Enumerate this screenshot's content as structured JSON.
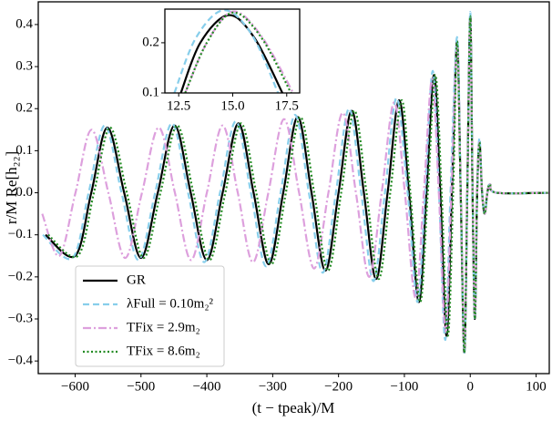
{
  "chart_data": [
    {
      "type": "line",
      "xlabel": "(t − tpeak)/M",
      "ylabel": "r/M Re[h₂₂]",
      "xlim": [
        -656,
        120
      ],
      "ylim": [
        -0.43,
        0.454
      ],
      "xticks": [
        {
          "value": -600,
          "label": "−600"
        },
        {
          "value": -500,
          "label": "−500"
        },
        {
          "value": -400,
          "label": "−400"
        },
        {
          "value": -300,
          "label": "−300"
        },
        {
          "value": -200,
          "label": "−200"
        },
        {
          "value": -100,
          "label": "−100"
        },
        0,
        100
      ],
      "yticks": [
        {
          "value": -0.4,
          "label": "−0.4"
        },
        {
          "value": -0.3,
          "label": "−0.3"
        },
        {
          "value": -0.2,
          "label": "−0.2"
        },
        {
          "value": -0.1,
          "label": "−0.1"
        },
        {
          "value": 0,
          "label": "0.0"
        },
        0.1,
        0.2,
        0.3,
        0.4
      ],
      "legend": "lower left",
      "series": [
        {
          "name": "GR",
          "color": "#000000",
          "dash": "solid",
          "x": [
            -645,
            -600,
            -575.5,
            -551,
            -525.5,
            -500,
            -474.5,
            -449,
            -424.5,
            -400,
            -376,
            -352,
            -329,
            -306,
            -284,
            -262,
            -241,
            -220,
            -200,
            -180,
            -161.5,
            -143,
            -125.5,
            -108,
            -93,
            -78,
            -66.5,
            -55,
            -45.5,
            -36,
            -28,
            -20,
            -14.5,
            -9,
            -4.5,
            0,
            3.5,
            7,
            10.5,
            14,
            18,
            22,
            26,
            30,
            40,
            120
          ],
          "values": [
            -0.1,
            -0.15,
            0,
            0.155,
            0,
            -0.155,
            0,
            0.16,
            0,
            -0.16,
            0,
            0.165,
            0,
            -0.17,
            0,
            0.18,
            0,
            -0.185,
            0,
            0.195,
            0,
            -0.205,
            0,
            0.22,
            0,
            -0.26,
            0,
            0.28,
            0,
            -0.34,
            0,
            0.36,
            0,
            -0.38,
            0,
            0.42,
            0,
            -0.3,
            0,
            0.12,
            0,
            -0.05,
            0,
            0.02,
            0,
            0
          ]
        },
        {
          "name": "λFull = 0.10m₂²",
          "color": "#87ceeb",
          "dash": "dashed",
          "x": [
            -649,
            -604,
            -579.5,
            -555,
            -529.5,
            -504,
            -478.5,
            -453,
            -428.5,
            -404,
            -380,
            -356,
            -333,
            -310,
            -288,
            -266,
            -245,
            -224,
            -204,
            -184,
            -165.5,
            -147,
            -129.5,
            -112,
            -95,
            -80,
            -68.5,
            -57,
            -47.5,
            -38,
            -30,
            -20,
            -14.5,
            -9,
            -4.5,
            0,
            3.5,
            7,
            10.5,
            14,
            18,
            22,
            26,
            30,
            40,
            120
          ],
          "values": [
            -0.1,
            -0.155,
            0,
            0.16,
            0,
            -0.16,
            0,
            0.165,
            0,
            -0.165,
            0,
            0.17,
            0,
            -0.175,
            0,
            0.185,
            0,
            -0.19,
            0,
            0.2,
            0,
            -0.21,
            0,
            0.225,
            0,
            -0.26,
            0,
            0.29,
            0,
            -0.35,
            0,
            0.37,
            0,
            -0.38,
            0,
            0.43,
            0,
            -0.3,
            0,
            0.13,
            0,
            -0.05,
            0,
            0.02,
            0,
            0
          ]
        },
        {
          "name": "TFix = 2.9m₂",
          "color": "#dda0dd",
          "dash": "dashdot",
          "x": [
            -650,
            -624,
            -599.5,
            -575,
            -549.5,
            -524,
            -498.5,
            -473,
            -448.5,
            -424,
            -400,
            -376,
            -353,
            -330,
            -306.6,
            -282.7,
            -259.9,
            -237.1,
            -215.4,
            -193.7,
            -173.6,
            -153.5,
            -134.5,
            -115.5,
            -99.3,
            -83,
            -70.5,
            -58,
            -47.7,
            -37.4,
            -28.7,
            -20,
            -14.5,
            -9,
            -4.5,
            0,
            3.5,
            7,
            10.5,
            14,
            18,
            22,
            26,
            30,
            40,
            120
          ],
          "values": [
            -0.05,
            -0.15,
            0,
            0.15,
            0,
            -0.155,
            0,
            0.155,
            0,
            -0.16,
            0,
            0.16,
            0,
            -0.165,
            0,
            0.175,
            0,
            -0.18,
            0,
            0.19,
            0,
            -0.2,
            0,
            0.215,
            0,
            -0.25,
            0,
            0.27,
            0,
            -0.33,
            0,
            0.35,
            0,
            -0.37,
            0,
            0.41,
            0,
            -0.29,
            0,
            0.12,
            0,
            -0.05,
            0,
            0.02,
            0,
            0
          ]
        },
        {
          "name": "TFix = 8.6m₂",
          "color": "#228b22",
          "dash": "dotted",
          "x": [
            -641,
            -596,
            -571.5,
            -547,
            -521.5,
            -496,
            -470.5,
            -445,
            -420.5,
            -396,
            -372,
            -348,
            -325,
            -302,
            -280,
            -258,
            -237,
            -216,
            -196,
            -176,
            -157.5,
            -139,
            -121.5,
            -104,
            -91,
            -76,
            -64.5,
            -53,
            -43.5,
            -34,
            -26,
            -20,
            -14.5,
            -9,
            -4.5,
            0,
            3.5,
            7,
            10.5,
            14,
            18,
            22,
            26,
            30,
            40,
            120
          ],
          "values": [
            -0.1,
            -0.15,
            0,
            0.155,
            0,
            -0.155,
            0,
            0.16,
            0,
            -0.16,
            0,
            0.165,
            0,
            -0.17,
            0,
            0.18,
            0,
            -0.185,
            0,
            0.195,
            0,
            -0.205,
            0,
            0.22,
            0,
            -0.26,
            0,
            0.28,
            0,
            -0.34,
            0,
            0.36,
            0,
            -0.38,
            0,
            0.42,
            0,
            -0.3,
            0,
            0.12,
            0,
            -0.05,
            0,
            0.02,
            0,
            0
          ]
        }
      ]
    },
    {
      "type": "line",
      "xlim": [
        11.86,
        18.1
      ],
      "ylim": [
        0.1,
        0.267
      ],
      "xticks": [
        12.5,
        {
          "value": 15,
          "label": "15.0"
        },
        17.5
      ],
      "yticks": [
        0.1,
        0.2
      ],
      "series": [
        {
          "name": "GR",
          "color": "#000000",
          "dash": "solid",
          "x": [
            12.6,
            13.5,
            14.8,
            16,
            17.3
          ],
          "values": [
            0.1,
            0.2,
            0.255,
            0.21,
            0.1
          ]
        },
        {
          "name": "λFull = 0.10m₂²",
          "color": "#87ceeb",
          "dash": "dashed",
          "x": [
            12.3,
            13.3,
            14.6,
            15.9,
            17.1
          ],
          "values": [
            0.1,
            0.21,
            0.265,
            0.215,
            0.1
          ]
        },
        {
          "name": "TFix = 2.9m₂",
          "color": "#dda0dd",
          "dash": "dashdot",
          "x": [
            12.8,
            13.8,
            15.0,
            16.3,
            17.8
          ],
          "values": [
            0.1,
            0.2,
            0.262,
            0.215,
            0.1
          ]
        },
        {
          "name": "TFix = 8.6m₂",
          "color": "#228b22",
          "dash": "dotted",
          "x": [
            12.8,
            13.8,
            15.0,
            16.3,
            17.7
          ],
          "values": [
            0.1,
            0.2,
            0.26,
            0.212,
            0.1
          ]
        }
      ]
    }
  ]
}
